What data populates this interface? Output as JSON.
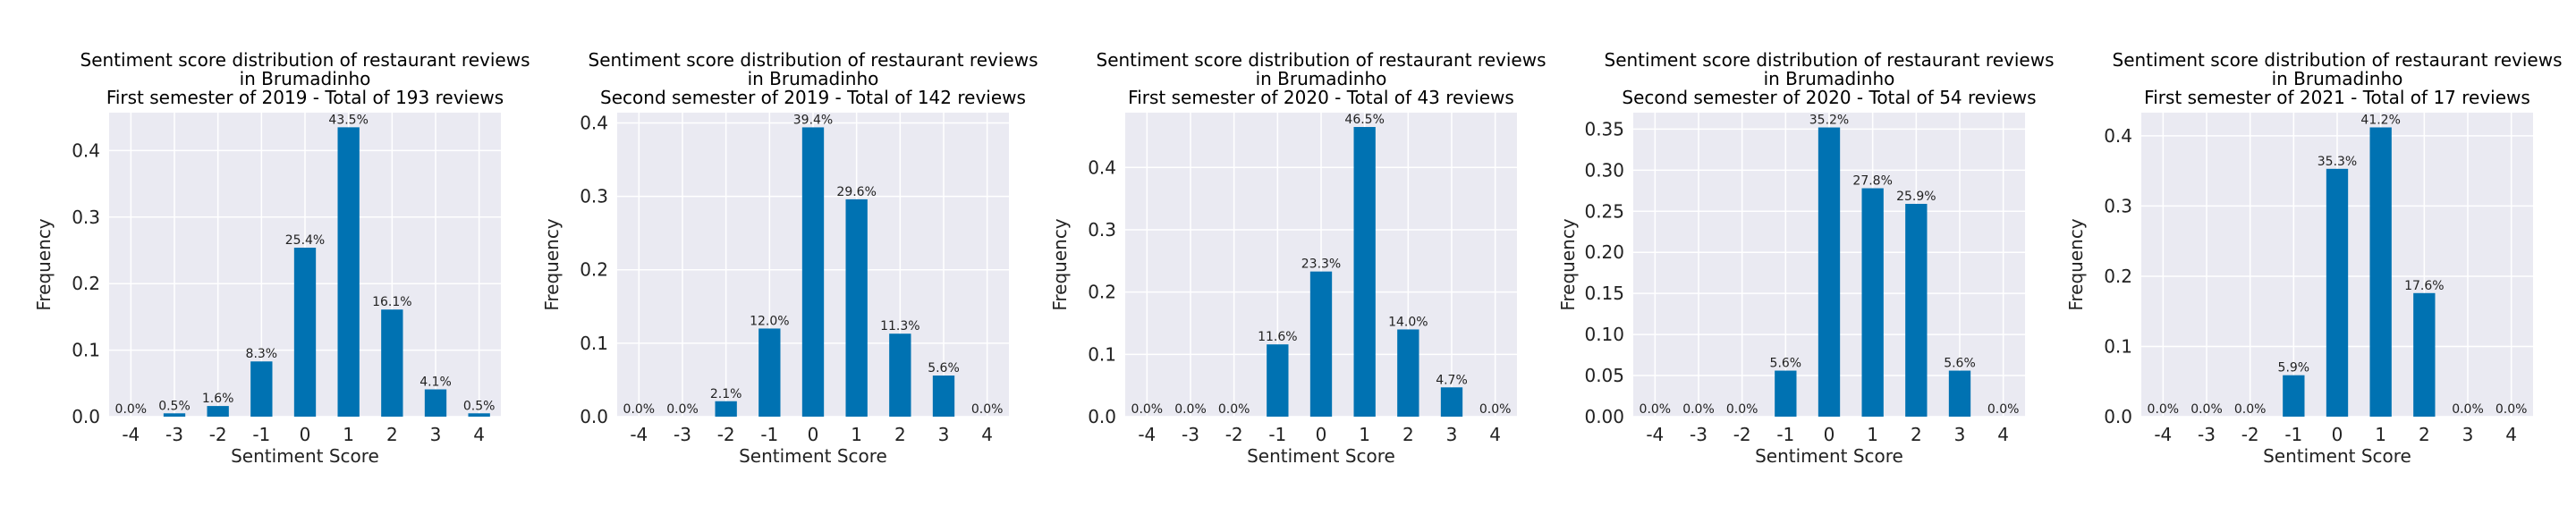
{
  "colors": {
    "bar": "#0072b2",
    "plot_bg": "#eaeaf2",
    "grid": "#ffffff"
  },
  "chart_data": [
    {
      "type": "bar",
      "title": [
        "Sentiment score distribution of restaurant reviews",
        "in Brumadinho",
        "First semester of 2019 - Total of 193 reviews"
      ],
      "xlabel": "Sentiment Score",
      "ylabel": "Frequency",
      "categories": [
        "-4",
        "-3",
        "-2",
        "-1",
        "0",
        "1",
        "2",
        "3",
        "4"
      ],
      "values": [
        0.0,
        0.005,
        0.016,
        0.083,
        0.254,
        0.435,
        0.161,
        0.041,
        0.005
      ],
      "labels": [
        "0.0%",
        "0.5%",
        "1.6%",
        "8.3%",
        "25.4%",
        "43.5%",
        "16.1%",
        "4.1%",
        "0.5%"
      ],
      "ylim": [
        0,
        0.457
      ],
      "yticks": [
        0.0,
        0.1,
        0.2,
        0.3,
        0.4
      ],
      "ytick_labels": [
        "0.0",
        "0.1",
        "0.2",
        "0.3",
        "0.4"
      ],
      "grid": true
    },
    {
      "type": "bar",
      "title": [
        "Sentiment score distribution of restaurant reviews",
        "in Brumadinho",
        "Second semester of 2019 - Total of 142 reviews"
      ],
      "xlabel": "Sentiment Score",
      "ylabel": "Frequency",
      "categories": [
        "-4",
        "-3",
        "-2",
        "-1",
        "0",
        "1",
        "2",
        "3",
        "4"
      ],
      "values": [
        0.0,
        0.0,
        0.021,
        0.12,
        0.394,
        0.296,
        0.113,
        0.056,
        0.0
      ],
      "labels": [
        "0.0%",
        "0.0%",
        "2.1%",
        "12.0%",
        "39.4%",
        "29.6%",
        "11.3%",
        "5.6%",
        "0.0%"
      ],
      "ylim": [
        0,
        0.414
      ],
      "yticks": [
        0.0,
        0.1,
        0.2,
        0.3,
        0.4
      ],
      "ytick_labels": [
        "0.0",
        "0.1",
        "0.2",
        "0.3",
        "0.4"
      ],
      "grid": true
    },
    {
      "type": "bar",
      "title": [
        "Sentiment score distribution of restaurant reviews",
        "in Brumadinho",
        "First semester of 2020 - Total of 43 reviews"
      ],
      "xlabel": "Sentiment Score",
      "ylabel": "Frequency",
      "categories": [
        "-4",
        "-3",
        "-2",
        "-1",
        "0",
        "1",
        "2",
        "3",
        "4"
      ],
      "values": [
        0.0,
        0.0,
        0.0,
        0.116,
        0.233,
        0.465,
        0.14,
        0.047,
        0.0
      ],
      "labels": [
        "0.0%",
        "0.0%",
        "0.0%",
        "11.6%",
        "23.3%",
        "46.5%",
        "14.0%",
        "4.7%",
        "0.0%"
      ],
      "ylim": [
        0,
        0.488
      ],
      "yticks": [
        0.0,
        0.1,
        0.2,
        0.3,
        0.4
      ],
      "ytick_labels": [
        "0.0",
        "0.1",
        "0.2",
        "0.3",
        "0.4"
      ],
      "grid": true
    },
    {
      "type": "bar",
      "title": [
        "Sentiment score distribution of restaurant reviews",
        "in Brumadinho",
        "Second semester of 2020 - Total of 54 reviews"
      ],
      "xlabel": "Sentiment Score",
      "ylabel": "Frequency",
      "categories": [
        "-4",
        "-3",
        "-2",
        "-1",
        "0",
        "1",
        "2",
        "3",
        "4"
      ],
      "values": [
        0.0,
        0.0,
        0.0,
        0.056,
        0.352,
        0.278,
        0.259,
        0.056,
        0.0
      ],
      "labels": [
        "0.0%",
        "0.0%",
        "0.0%",
        "5.6%",
        "35.2%",
        "27.8%",
        "25.9%",
        "5.6%",
        "0.0%"
      ],
      "ylim": [
        0,
        0.37
      ],
      "yticks": [
        0.0,
        0.05,
        0.1,
        0.15,
        0.2,
        0.25,
        0.3,
        0.35
      ],
      "ytick_labels": [
        "0.00",
        "0.05",
        "0.10",
        "0.15",
        "0.20",
        "0.25",
        "0.30",
        "0.35"
      ],
      "grid": true
    },
    {
      "type": "bar",
      "title": [
        "Sentiment score distribution of restaurant reviews",
        "in Brumadinho",
        "First semester of 2021 - Total of 17 reviews"
      ],
      "xlabel": "Sentiment Score",
      "ylabel": "Frequency",
      "categories": [
        "-4",
        "-3",
        "-2",
        "-1",
        "0",
        "1",
        "2",
        "3",
        "4"
      ],
      "values": [
        0.0,
        0.0,
        0.0,
        0.059,
        0.353,
        0.412,
        0.176,
        0.0,
        0.0
      ],
      "labels": [
        "0.0%",
        "0.0%",
        "0.0%",
        "5.9%",
        "35.3%",
        "41.2%",
        "17.6%",
        "0.0%",
        "0.0%"
      ],
      "ylim": [
        0,
        0.433
      ],
      "yticks": [
        0.0,
        0.1,
        0.2,
        0.3,
        0.4
      ],
      "ytick_labels": [
        "0.0",
        "0.1",
        "0.2",
        "0.3",
        "0.4"
      ],
      "grid": true
    }
  ]
}
